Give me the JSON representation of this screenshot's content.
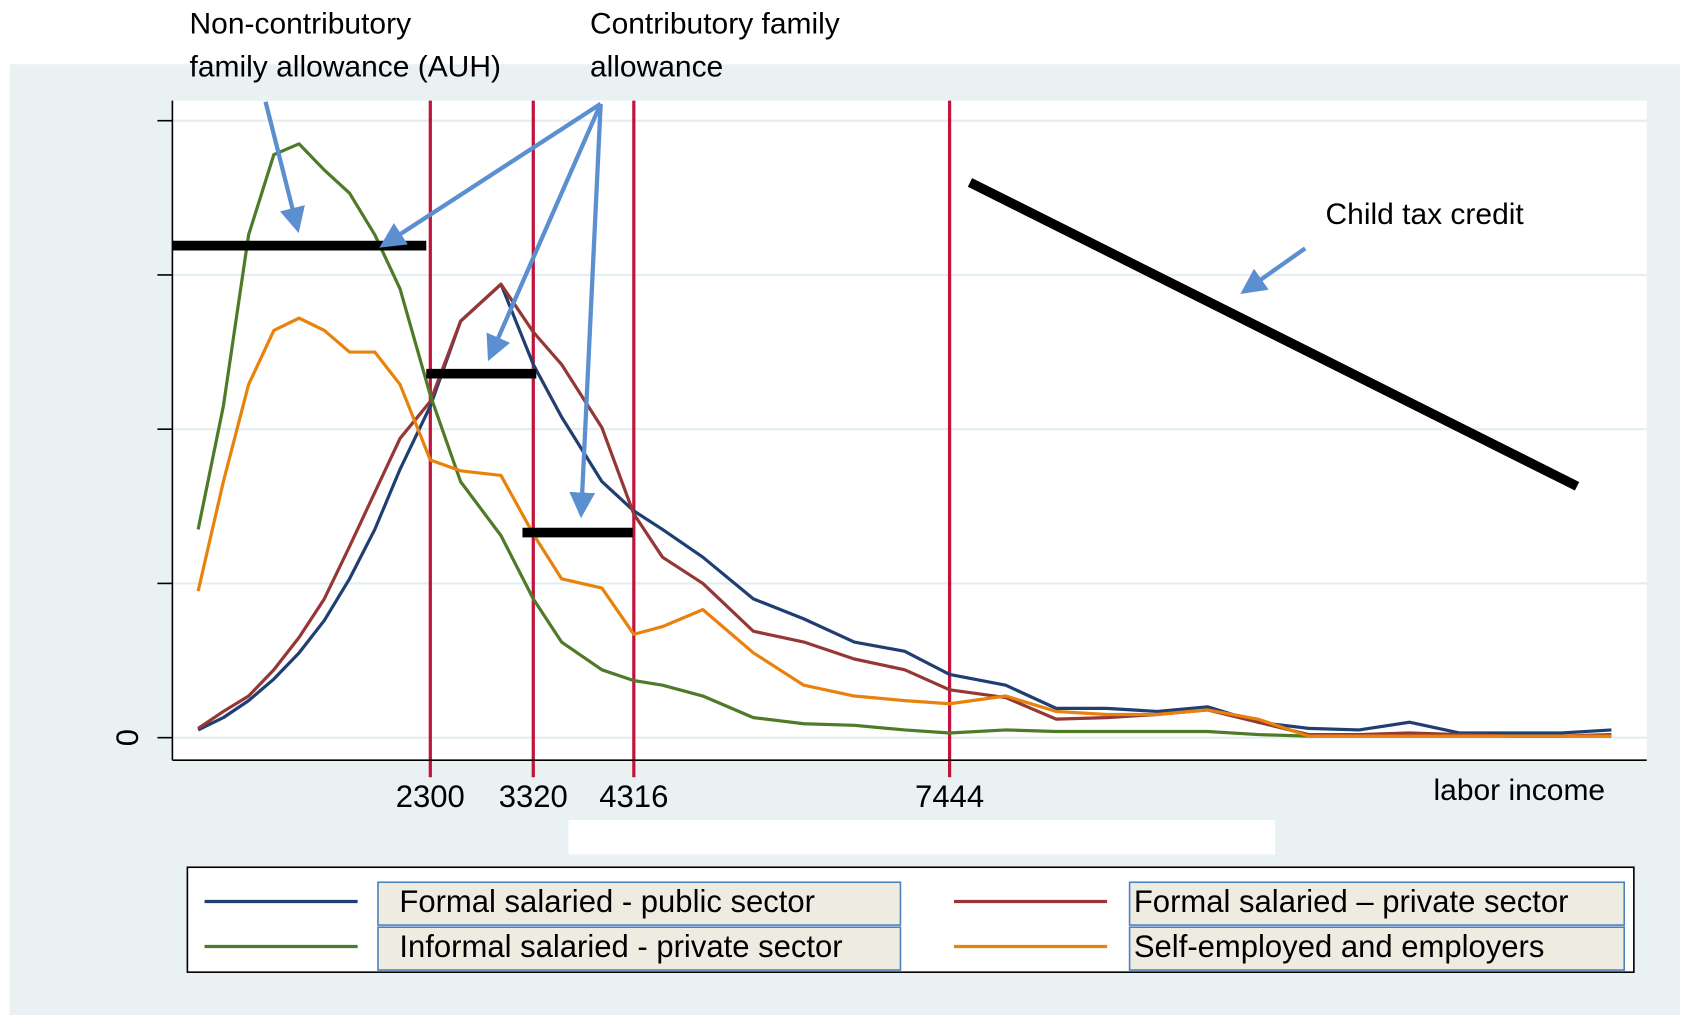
{
  "chart_data": {
    "type": "line",
    "x_label": "labor income",
    "xlim": [
      -255,
      14350
    ],
    "ylim": [
      -0.146,
      4.13
    ],
    "xticks": [
      2300,
      3320,
      4316,
      7444
    ],
    "yticks": [
      0
    ],
    "yticks_unlabeled": [
      1,
      2,
      3,
      4
    ],
    "grid": true,
    "tick_line_color": "#c0143c",
    "legend": "bottom",
    "x": [
      0,
      250,
      500,
      750,
      1000,
      1250,
      1500,
      1750,
      2000,
      2300,
      2600,
      3000,
      3320,
      3600,
      4000,
      4316,
      4600,
      5000,
      5500,
      6000,
      6500,
      7000,
      7444,
      8000,
      8500,
      9000,
      9500,
      10000,
      10500,
      11000,
      11500,
      12000,
      12500,
      13000,
      13500,
      14000
    ],
    "series": [
      {
        "name": "Formal salaried - public sector",
        "color": "#1f3f73",
        "values": [
          0.05,
          0.13,
          0.24,
          0.38,
          0.55,
          0.76,
          1.03,
          1.35,
          1.74,
          2.15,
          2.7,
          2.94,
          2.42,
          2.08,
          1.66,
          1.47,
          1.35,
          1.17,
          0.9,
          0.77,
          0.62,
          0.56,
          0.41,
          0.34,
          0.19,
          0.19,
          0.17,
          0.2,
          0.1,
          0.06,
          0.05,
          0.1,
          0.03,
          0.03,
          0.03,
          0.05
        ]
      },
      {
        "name": "Formal salaried – private sector",
        "color": "#953735",
        "values": [
          0.06,
          0.17,
          0.27,
          0.44,
          0.65,
          0.9,
          1.24,
          1.59,
          1.94,
          2.18,
          2.7,
          2.94,
          2.63,
          2.42,
          2.01,
          1.45,
          1.17,
          1.0,
          0.69,
          0.62,
          0.51,
          0.44,
          0.31,
          0.26,
          0.12,
          0.13,
          0.15,
          0.18,
          0.1,
          0.02,
          0.02,
          0.03,
          0.02,
          0.01,
          0.01,
          0.02
        ]
      },
      {
        "name": "Informal salaried - private sector",
        "color": "#4f7a28",
        "values": [
          1.35,
          2.15,
          3.26,
          3.78,
          3.85,
          3.68,
          3.53,
          3.26,
          2.91,
          2.22,
          1.66,
          1.31,
          0.9,
          0.62,
          0.44,
          0.37,
          0.34,
          0.27,
          0.13,
          0.09,
          0.08,
          0.05,
          0.03,
          0.05,
          0.04,
          0.04,
          0.04,
          0.04,
          0.02,
          0.01,
          0.01,
          0.01,
          0.01,
          0.01,
          0.01,
          0.01
        ]
      },
      {
        "name": "Self-employed and employers",
        "color": "#e8820c",
        "values": [
          0.95,
          1.66,
          2.29,
          2.64,
          2.72,
          2.64,
          2.5,
          2.5,
          2.29,
          1.8,
          1.73,
          1.7,
          1.32,
          1.03,
          0.97,
          0.67,
          0.72,
          0.83,
          0.55,
          0.34,
          0.27,
          0.24,
          0.22,
          0.27,
          0.17,
          0.15,
          0.15,
          0.18,
          0.12,
          0.01,
          0.01,
          0.01,
          0.01,
          0.01,
          0.01,
          0.01
        ]
      }
    ],
    "benefit_segments": [
      {
        "x": [
          -255,
          2260
        ],
        "y": [
          3.19,
          3.19
        ]
      },
      {
        "x": [
          2260,
          3350
        ],
        "y": [
          2.36,
          2.36
        ]
      },
      {
        "x": [
          3213,
          4305
        ],
        "y": [
          1.33,
          1.33
        ]
      },
      {
        "x": [
          7646,
          13660
        ],
        "y": [
          3.6,
          1.63
        ]
      }
    ],
    "annotations": [
      {
        "lines": [
          "Non-contributory",
          "family allowance (AUH)"
        ]
      },
      {
        "lines": [
          "Contributory family",
          "allowance"
        ]
      },
      {
        "lines": [
          "Child tax credit"
        ]
      }
    ]
  }
}
